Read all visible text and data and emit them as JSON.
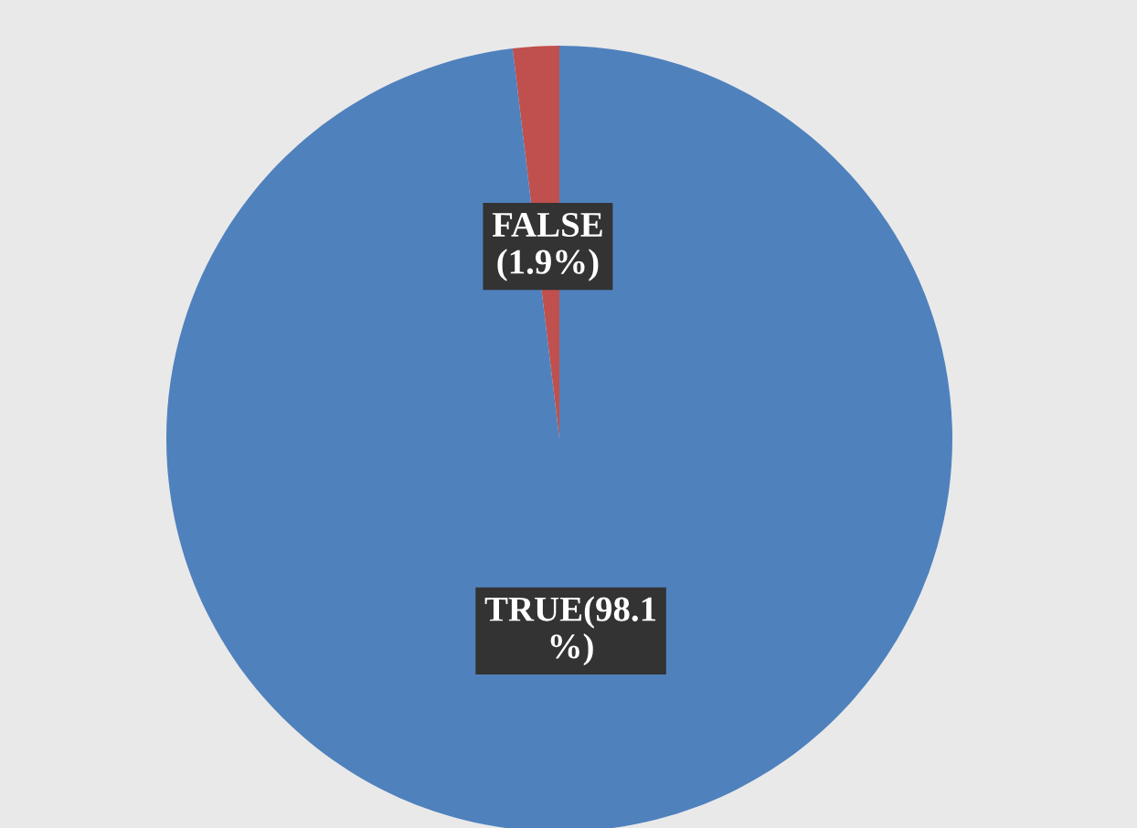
{
  "chart_data": {
    "type": "pie",
    "categories": [
      "FALSE",
      "TRUE"
    ],
    "values": [
      1.9,
      98.1
    ],
    "colors": [
      "#c0504d",
      "#4f81bd"
    ],
    "value_labels": [
      "(1.9%)",
      "(98.1\n%)"
    ]
  }
}
